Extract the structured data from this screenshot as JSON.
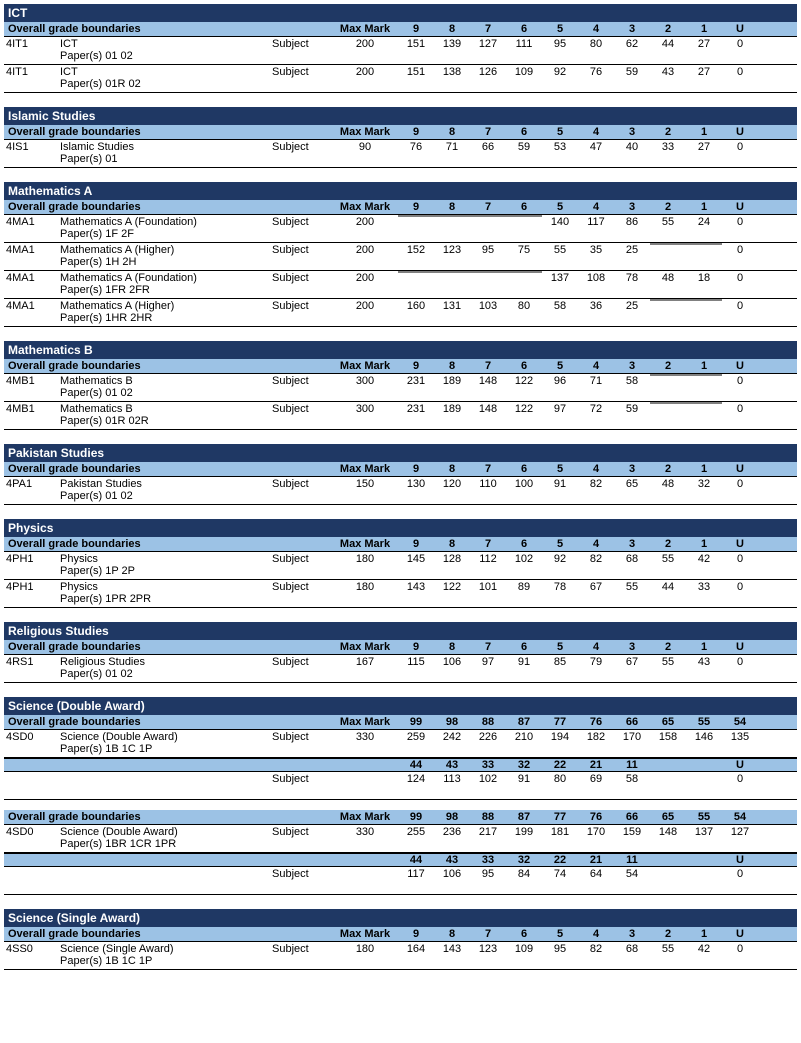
{
  "labels": {
    "overall": "Overall grade boundaries",
    "maxmark": "Max Mark",
    "subject": "Subject",
    "papers_prefix": "Paper(s) "
  },
  "grade_headers_std": [
    "9",
    "8",
    "7",
    "6",
    "5",
    "4",
    "3",
    "2",
    "1",
    "U"
  ],
  "sections": [
    {
      "title": "ICT",
      "blocks": [
        {
          "headers": "std",
          "rows": [
            {
              "code": "4IT1",
              "name": "ICT",
              "papers": "01 02",
              "max": "200",
              "grades": [
                "151",
                "139",
                "127",
                "111",
                "95",
                "80",
                "62",
                "44",
                "27",
                "0"
              ]
            },
            {
              "code": "4IT1",
              "name": "ICT",
              "papers": "01R 02",
              "max": "200",
              "grades": [
                "151",
                "138",
                "126",
                "109",
                "92",
                "76",
                "59",
                "43",
                "27",
                "0"
              ]
            }
          ]
        }
      ]
    },
    {
      "title": "Islamic Studies",
      "blocks": [
        {
          "headers": "std",
          "rows": [
            {
              "code": "4IS1",
              "name": "Islamic Studies",
              "papers": "01",
              "max": "90",
              "grades": [
                "76",
                "71",
                "66",
                "59",
                "53",
                "47",
                "40",
                "33",
                "27",
                "0"
              ]
            }
          ]
        }
      ]
    },
    {
      "title": "Mathematics A",
      "blocks": [
        {
          "headers": "std",
          "rows": [
            {
              "code": "4MA1",
              "name": "Mathematics A (Foundation)",
              "papers": "1F 2F",
              "max": "200",
              "grades": [
                "",
                "",
                "",
                "",
                "140",
                "117",
                "86",
                "55",
                "24",
                "0"
              ],
              "grey": [
                0,
                1,
                2,
                3
              ]
            },
            {
              "code": "4MA1",
              "name": "Mathematics A (Higher)",
              "papers": "1H 2H",
              "max": "200",
              "grades": [
                "152",
                "123",
                "95",
                "75",
                "55",
                "35",
                "25",
                "",
                "",
                "0"
              ],
              "grey": [
                7,
                8
              ]
            },
            {
              "code": "4MA1",
              "name": "Mathematics A (Foundation)",
              "papers": "1FR 2FR",
              "max": "200",
              "grades": [
                "",
                "",
                "",
                "",
                "137",
                "108",
                "78",
                "48",
                "18",
                "0"
              ],
              "grey": [
                0,
                1,
                2,
                3
              ]
            },
            {
              "code": "4MA1",
              "name": "Mathematics A (Higher)",
              "papers": "1HR 2HR",
              "max": "200",
              "grades": [
                "160",
                "131",
                "103",
                "80",
                "58",
                "36",
                "25",
                "",
                "",
                "0"
              ],
              "grey": [
                7,
                8
              ]
            }
          ]
        }
      ]
    },
    {
      "title": "Mathematics B",
      "blocks": [
        {
          "headers": "std",
          "rows": [
            {
              "code": "4MB1",
              "name": "Mathematics B",
              "papers": "01 02",
              "max": "300",
              "grades": [
                "231",
                "189",
                "148",
                "122",
                "96",
                "71",
                "58",
                "",
                "",
                "0"
              ],
              "grey": [
                7,
                8
              ]
            },
            {
              "code": "4MB1",
              "name": "Mathematics B",
              "papers": "01R 02R",
              "max": "300",
              "grades": [
                "231",
                "189",
                "148",
                "122",
                "97",
                "72",
                "59",
                "",
                "",
                "0"
              ],
              "grey": [
                7,
                8
              ]
            }
          ]
        }
      ]
    },
    {
      "title": "Pakistan Studies",
      "blocks": [
        {
          "headers": "std",
          "rows": [
            {
              "code": "4PA1",
              "name": "Pakistan Studies",
              "papers": "01 02",
              "max": "150",
              "grades": [
                "130",
                "120",
                "110",
                "100",
                "91",
                "82",
                "65",
                "48",
                "32",
                "0"
              ]
            }
          ]
        }
      ]
    },
    {
      "title": "Physics",
      "blocks": [
        {
          "headers": "std",
          "rows": [
            {
              "code": "4PH1",
              "name": "Physics",
              "papers": "1P 2P",
              "max": "180",
              "grades": [
                "145",
                "128",
                "112",
                "102",
                "92",
                "82",
                "68",
                "55",
                "42",
                "0"
              ]
            },
            {
              "code": "4PH1",
              "name": "Physics",
              "papers": "1PR 2PR",
              "max": "180",
              "grades": [
                "143",
                "122",
                "101",
                "89",
                "78",
                "67",
                "55",
                "44",
                "33",
                "0"
              ]
            }
          ]
        }
      ]
    },
    {
      "title": "Religious Studies",
      "blocks": [
        {
          "headers": "std",
          "rows": [
            {
              "code": "4RS1",
              "name": "Religious Studies",
              "papers": "01 02",
              "max": "167",
              "grades": [
                "115",
                "106",
                "97",
                "91",
                "85",
                "79",
                "67",
                "55",
                "43",
                "0"
              ]
            }
          ]
        }
      ]
    },
    {
      "title": "Science (Double Award)",
      "blocks": [
        {
          "headers": [
            "99",
            "98",
            "88",
            "87",
            "77",
            "76",
            "66",
            "65",
            "55",
            "54"
          ],
          "rows": [
            {
              "code": "4SD0",
              "name": "Science (Double Award)",
              "papers": "1B 1C 1P",
              "max": "330",
              "grades": [
                "259",
                "242",
                "226",
                "210",
                "194",
                "182",
                "170",
                "158",
                "146",
                "135"
              ]
            }
          ],
          "sub": {
            "headers": [
              "44",
              "43",
              "33",
              "32",
              "22",
              "21",
              "11",
              "",
              "",
              "U"
            ],
            "row": {
              "max": "",
              "type": "Subject",
              "grades": [
                "124",
                "113",
                "102",
                "91",
                "80",
                "69",
                "58",
                "",
                "",
                "0"
              ]
            }
          }
        },
        {
          "headers": [
            "99",
            "98",
            "88",
            "87",
            "77",
            "76",
            "66",
            "65",
            "55",
            "54"
          ],
          "rows": [
            {
              "code": "4SD0",
              "name": "Science (Double Award)",
              "papers": "1BR 1CR 1PR",
              "max": "330",
              "grades": [
                "255",
                "236",
                "217",
                "199",
                "181",
                "170",
                "159",
                "148",
                "137",
                "127"
              ]
            }
          ],
          "sub": {
            "headers": [
              "44",
              "43",
              "33",
              "32",
              "22",
              "21",
              "11",
              "",
              "",
              "U"
            ],
            "row": {
              "max": "",
              "type": "Subject",
              "grades": [
                "117",
                "106",
                "95",
                "84",
                "74",
                "64",
                "54",
                "",
                "",
                "0"
              ]
            }
          }
        }
      ]
    },
    {
      "title": "Science (Single Award)",
      "blocks": [
        {
          "headers": "std",
          "rows": [
            {
              "code": "4SS0",
              "name": "Science (Single Award)",
              "papers": "1B 1C 1P",
              "max": "180",
              "grades": [
                "164",
                "143",
                "123",
                "109",
                "95",
                "82",
                "68",
                "55",
                "42",
                "0"
              ]
            }
          ]
        }
      ]
    }
  ]
}
